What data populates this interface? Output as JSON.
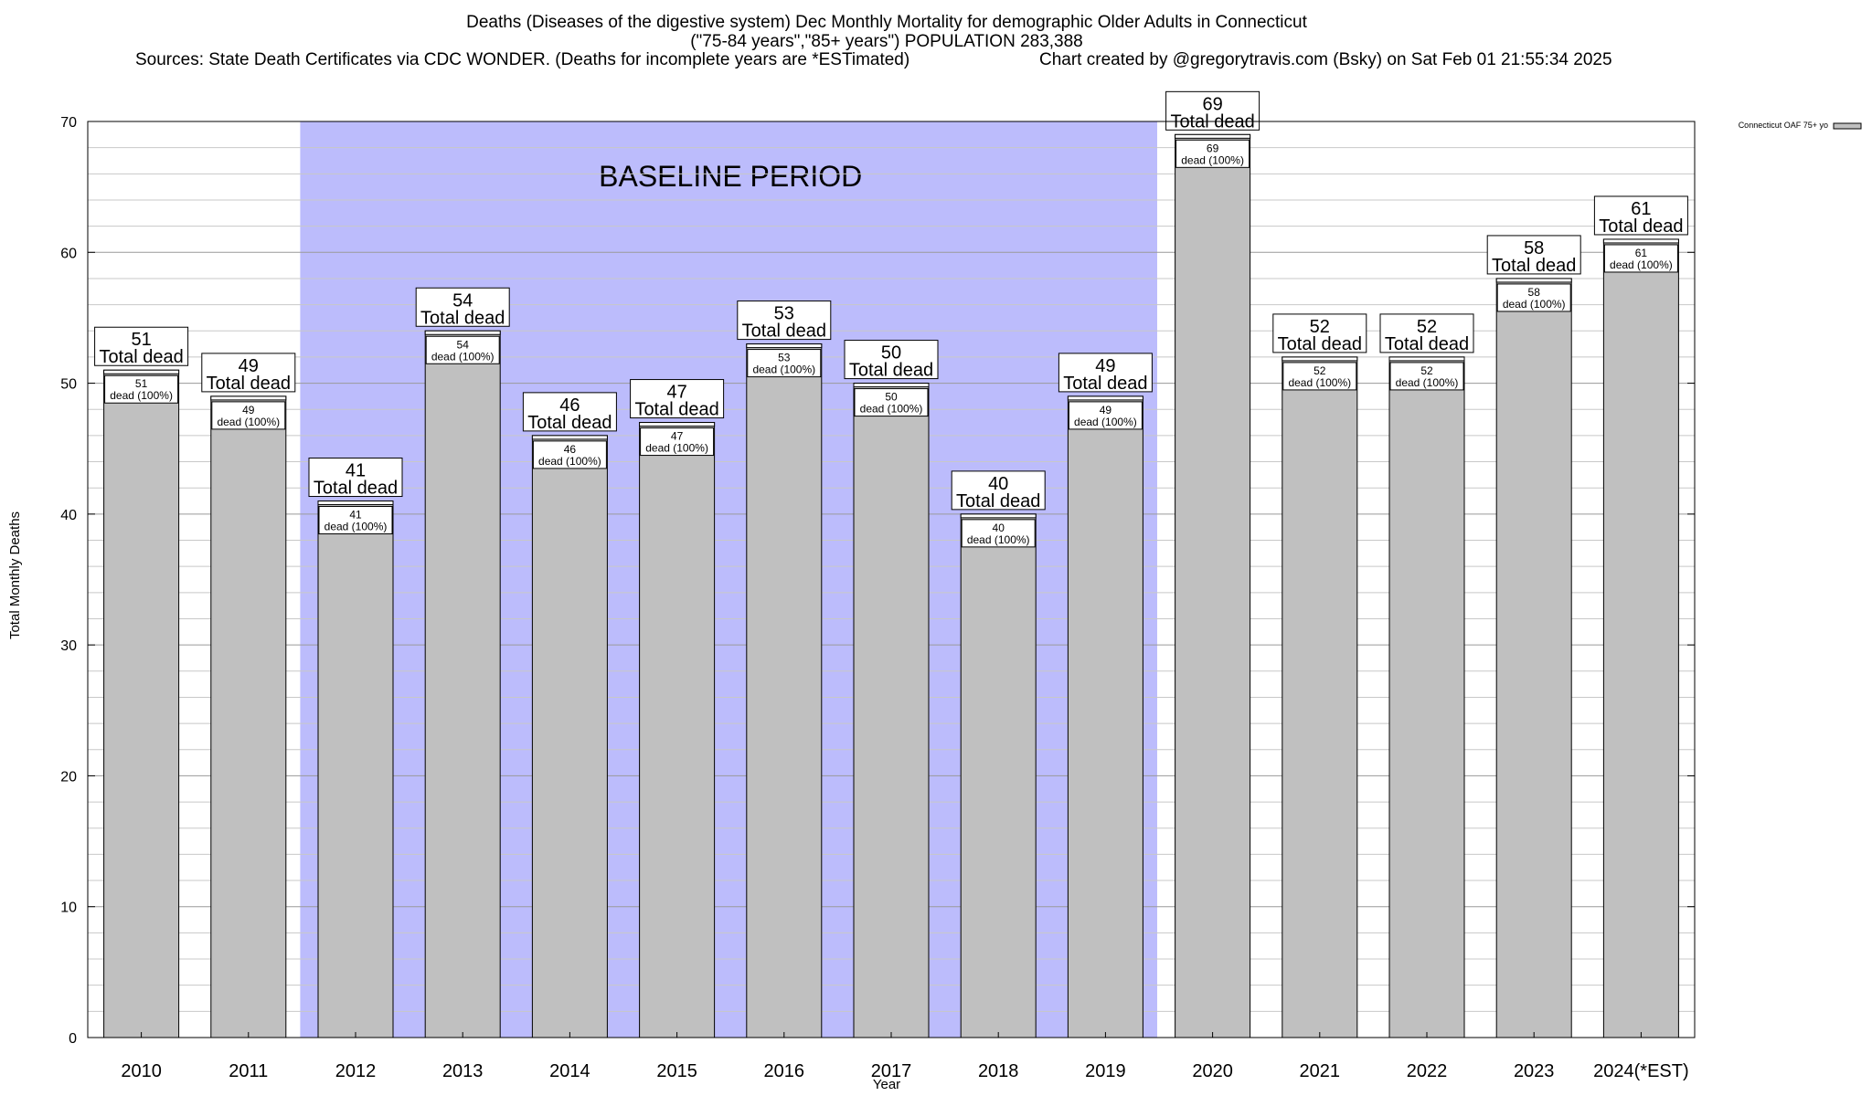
{
  "title_lines": [
    "Deaths (Diseases of the digestive system) Dec Monthly Mortality for demographic Older Adults in Connecticut",
    "(\"75-84 years\",\"85+ years\") POPULATION 283,388",
    "Sources: State Death Certificates via CDC WONDER. (Deaths for incomplete years are *ESTimated)",
    "Chart created by @gregorytravis.com (Bsky) on Sat Feb 01 21:55:34 2025"
  ],
  "chart_data": {
    "type": "bar",
    "categories": [
      "2010",
      "2011",
      "2012",
      "2013",
      "2014",
      "2015",
      "2016",
      "2017",
      "2018",
      "2019",
      "2020",
      "2021",
      "2022",
      "2023",
      "2024(*EST)"
    ],
    "series": [
      {
        "name": "Connecticut OAF 75+ yo",
        "values": [
          51,
          49,
          41,
          54,
          46,
          47,
          53,
          50,
          40,
          49,
          69,
          52,
          52,
          58,
          61
        ]
      }
    ],
    "bar_labels": {
      "total_suffix": "Total dead",
      "inner_suffix": "dead (100%)"
    },
    "xlabel": "Year",
    "ylabel": "Total Monthly Deaths",
    "ylim": [
      0,
      70
    ],
    "yticks": [
      0,
      10,
      20,
      30,
      40,
      50,
      60,
      70
    ],
    "baseline_period": {
      "label": "BASELINE PERIOD",
      "from": "2012",
      "to": "2019",
      "color": "#bcbcfc"
    },
    "bar_color": "#c0c0c0",
    "grid": true,
    "legend_position": "top-right"
  }
}
